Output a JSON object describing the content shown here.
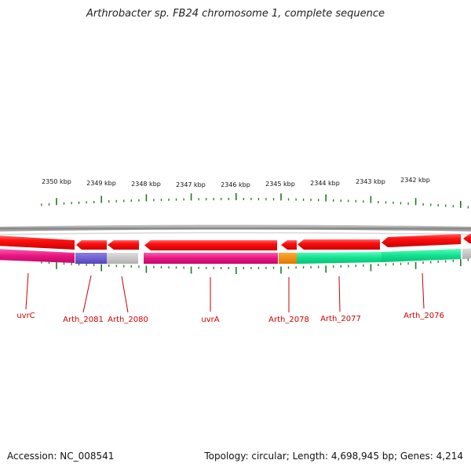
{
  "title": "Arthrobacter sp. FB24 chromosome 1, complete sequence",
  "footer": {
    "accession": "Accession: NC_008541",
    "summary": "Topology: circular; Length: 4,698,945 bp; Genes: 4,214"
  },
  "scale_labels": [
    "2350 kbp",
    "2349 kbp",
    "2348 kbp",
    "2347 kbp",
    "2346 kbp",
    "2345 kbp",
    "2344 kbp",
    "2343 kbp",
    "2342 kbp"
  ],
  "gene_labels": [
    "uvrC",
    "Arth_2081",
    "Arth_2080",
    "uvrA",
    "Arth_2078",
    "Arth_2077",
    "Arth_2076"
  ],
  "colors": {
    "backbone": "#8a8a8a",
    "strand_forward": "#ee1111",
    "tick": "#1f7a1f",
    "label": "#cc0000",
    "uvrC": "#e6157f",
    "Arth_2081": "#6655cc",
    "Arth_2080": "#c0c0c0",
    "uvrA": "#e6157f",
    "Arth_2078": "#ff8800",
    "Arth_2077": "#12e090",
    "Arth_2076": "#12e090"
  }
}
